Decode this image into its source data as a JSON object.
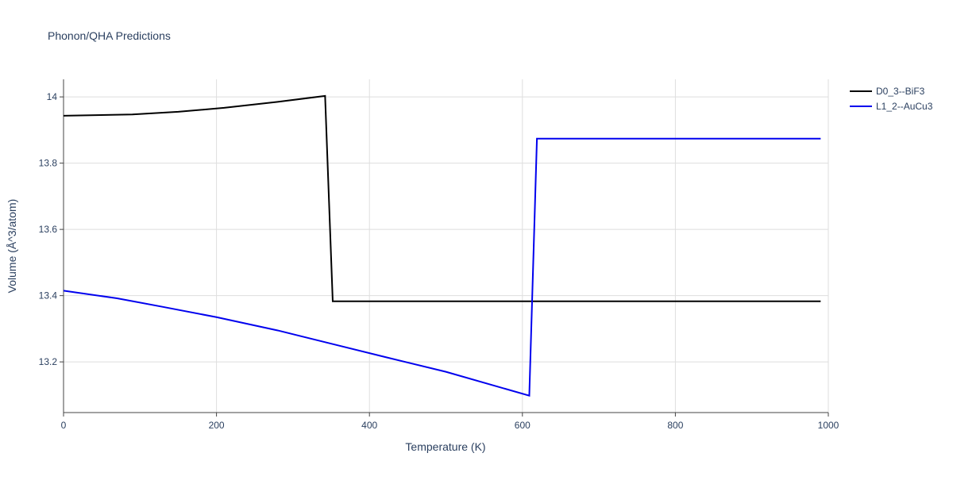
{
  "chart_data": {
    "type": "line",
    "title": "Phonon/QHA Predictions",
    "x_label": "Temperature (K)",
    "y_label": "Volume (Å^3/atom)",
    "xlim": [
      0,
      1000
    ],
    "xticks": [
      0,
      200,
      400,
      600,
      800,
      1000
    ],
    "ylim": [
      13.047,
      14.053
    ],
    "yticks": [
      {
        "value": 13.2,
        "label": "13.2"
      },
      {
        "value": 13.4,
        "label": "13.4"
      },
      {
        "value": 13.6,
        "label": "13.6"
      },
      {
        "value": 13.8,
        "label": "13.8"
      },
      14
    ],
    "grid": true,
    "legend": "right",
    "series": [
      {
        "name": "D0_3--BiF3",
        "color": "#000000",
        "x": [
          0,
          90,
          150,
          210,
          280,
          342,
          352,
          990
        ],
        "values": [
          13.943,
          13.947,
          13.955,
          13.967,
          13.985,
          14.003,
          13.383,
          13.383
        ]
      },
      {
        "name": "L1_2--AuCu3",
        "color": "#0000ee",
        "x": [
          0,
          70,
          130,
          200,
          280,
          350,
          420,
          500,
          609,
          619,
          990
        ],
        "values": [
          13.415,
          13.392,
          13.366,
          13.335,
          13.295,
          13.255,
          13.215,
          13.17,
          13.098,
          13.874,
          13.874
        ]
      }
    ]
  }
}
